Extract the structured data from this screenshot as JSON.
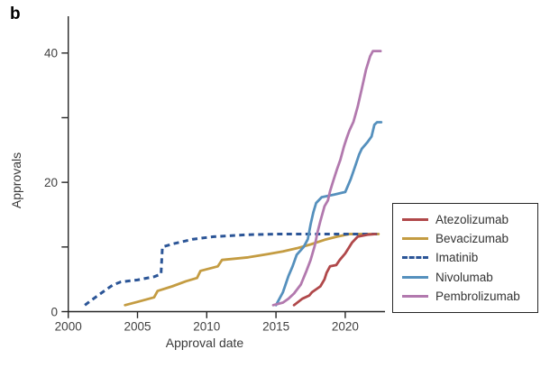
{
  "panel_label": "b",
  "chart_data": {
    "type": "line",
    "title": "",
    "xlabel": "Approval date",
    "ylabel": "Approvals",
    "xlim": [
      2000,
      2023
    ],
    "ylim": [
      0,
      45
    ],
    "x_ticks": [
      2000,
      2005,
      2010,
      2015,
      2020
    ],
    "y_ticks": [
      0,
      10,
      20,
      30,
      40
    ],
    "y_tick_labels": [
      0,
      20,
      40
    ],
    "grid": false,
    "legend_position": "right",
    "axis_color": "#262626",
    "tick_text_color": "#414141",
    "series": [
      {
        "name": "Atezolizumab",
        "color": "#b0484a",
        "dash": false,
        "points": [
          [
            2016.3,
            1
          ],
          [
            2016.9,
            2
          ],
          [
            2017.4,
            2.5
          ],
          [
            2017.6,
            3
          ],
          [
            2018.2,
            3.9
          ],
          [
            2018.5,
            5
          ],
          [
            2018.65,
            6
          ],
          [
            2018.9,
            7
          ],
          [
            2019.35,
            7.2
          ],
          [
            2019.6,
            8
          ],
          [
            2020.0,
            9
          ],
          [
            2020.5,
            10.7
          ],
          [
            2020.9,
            11.6
          ],
          [
            2021.6,
            11.9
          ],
          [
            2022.2,
            12
          ]
        ]
      },
      {
        "name": "Bevacizumab",
        "color": "#c49c42",
        "dash": false,
        "points": [
          [
            2004.1,
            1
          ],
          [
            2005.0,
            1.5
          ],
          [
            2006.2,
            2.2
          ],
          [
            2006.45,
            3.2
          ],
          [
            2007.5,
            3.9
          ],
          [
            2008.5,
            4.7
          ],
          [
            2009.3,
            5.2
          ],
          [
            2009.55,
            6.3
          ],
          [
            2010.8,
            7.0
          ],
          [
            2011.1,
            8.0
          ],
          [
            2013.0,
            8.4
          ],
          [
            2014.4,
            8.9
          ],
          [
            2015.5,
            9.3
          ],
          [
            2016.5,
            9.8
          ],
          [
            2017.5,
            10.4
          ],
          [
            2018.5,
            11.1
          ],
          [
            2019.4,
            11.6
          ],
          [
            2020.3,
            12
          ],
          [
            2022.4,
            12
          ]
        ]
      },
      {
        "name": "Imatinib",
        "color": "#2b5597",
        "dash": true,
        "points": [
          [
            2001.2,
            1
          ],
          [
            2002.2,
            2.6
          ],
          [
            2003.2,
            4.1
          ],
          [
            2003.8,
            4.6
          ],
          [
            2005.0,
            4.9
          ],
          [
            2006.2,
            5.4
          ],
          [
            2006.7,
            5.8
          ],
          [
            2006.8,
            10
          ],
          [
            2007.6,
            10.5
          ],
          [
            2009.0,
            11.2
          ],
          [
            2010.5,
            11.6
          ],
          [
            2013.0,
            11.9
          ],
          [
            2015.0,
            12
          ],
          [
            2022.3,
            12
          ]
        ]
      },
      {
        "name": "Nivolumab",
        "color": "#5590bd",
        "dash": false,
        "points": [
          [
            2015.0,
            1
          ],
          [
            2015.5,
            3
          ],
          [
            2015.9,
            5.5
          ],
          [
            2016.2,
            7
          ],
          [
            2016.5,
            8.8
          ],
          [
            2017.0,
            10
          ],
          [
            2017.3,
            11.2
          ],
          [
            2017.5,
            13.5
          ],
          [
            2017.7,
            15.4
          ],
          [
            2017.9,
            16.8
          ],
          [
            2018.3,
            17.7
          ],
          [
            2019.2,
            18.1
          ],
          [
            2020.0,
            18.5
          ],
          [
            2020.4,
            20.5
          ],
          [
            2020.7,
            22.4
          ],
          [
            2021.0,
            24.3
          ],
          [
            2021.2,
            25.2
          ],
          [
            2021.6,
            26.2
          ],
          [
            2021.9,
            27.1
          ],
          [
            2022.1,
            28.9
          ],
          [
            2022.3,
            29.3
          ],
          [
            2022.6,
            29.3
          ]
        ]
      },
      {
        "name": "Pembrolizumab",
        "color": "#b279ae",
        "dash": false,
        "points": [
          [
            2014.8,
            1
          ],
          [
            2015.5,
            1.4
          ],
          [
            2015.9,
            2
          ],
          [
            2016.3,
            2.8
          ],
          [
            2016.8,
            4.2
          ],
          [
            2017.2,
            6.3
          ],
          [
            2017.5,
            8
          ],
          [
            2017.8,
            10.2
          ],
          [
            2018.0,
            12.3
          ],
          [
            2018.2,
            14
          ],
          [
            2018.5,
            16.3
          ],
          [
            2018.75,
            17.2
          ],
          [
            2018.9,
            18.6
          ],
          [
            2019.1,
            20
          ],
          [
            2019.4,
            22
          ],
          [
            2019.65,
            23.5
          ],
          [
            2019.9,
            25.5
          ],
          [
            2020.1,
            26.8
          ],
          [
            2020.3,
            28
          ],
          [
            2020.6,
            29.4
          ],
          [
            2020.9,
            31.7
          ],
          [
            2021.2,
            34.5
          ],
          [
            2021.5,
            37.4
          ],
          [
            2021.8,
            39.5
          ],
          [
            2022.0,
            40.3
          ],
          [
            2022.55,
            40.3
          ]
        ]
      }
    ]
  }
}
